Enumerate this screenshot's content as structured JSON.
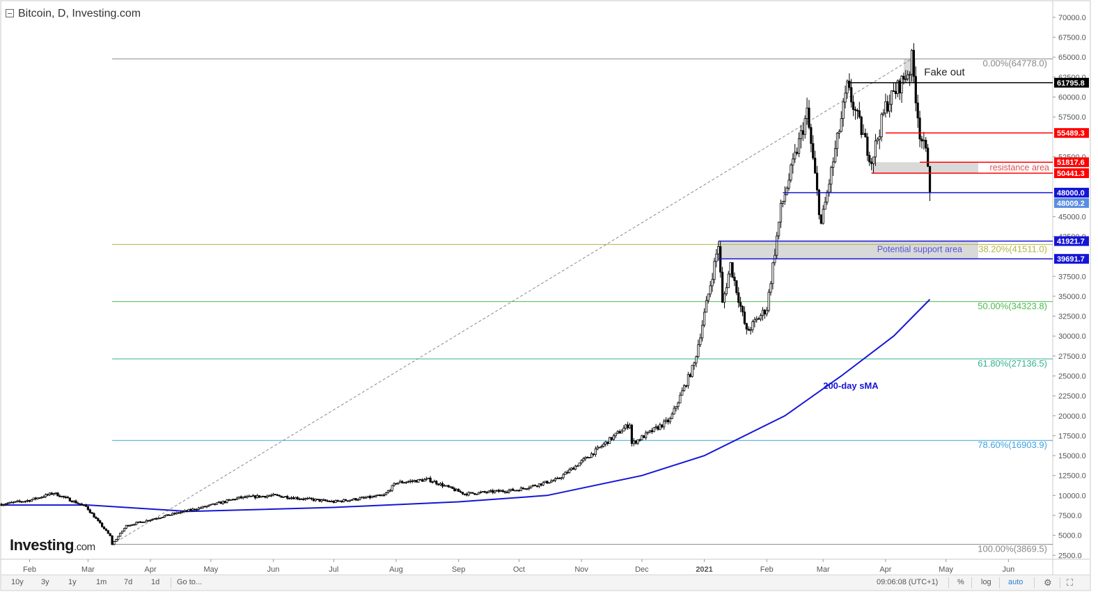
{
  "chart_title": "Bitcoin, D, Investing.com",
  "logo": {
    "brand": "Investing",
    "suffix": ".com"
  },
  "bottom_bar": {
    "periods": [
      "10y",
      "3y",
      "1y",
      "1m",
      "7d",
      "1d"
    ],
    "goto_label": "Go to...",
    "time": "09:06:08 (UTC+1)",
    "percent_label": "%",
    "log_label": "log",
    "auto_label": "auto"
  },
  "colors": {
    "candle": "#000000",
    "sma": "#1515d6",
    "price_tag_red": "#ff0000",
    "price_tag_blue": "#1515d6",
    "price_tag_black": "#000000",
    "current_price_tag": "#5b8de0",
    "fib_0": "#888888",
    "fib_382": "#b5b54a",
    "fib_50": "#4cbb4c",
    "fib_618": "#32b28e",
    "fib_786": "#3fa2dd",
    "fib_100": "#888888",
    "zone_fill": "#d9d9d9"
  },
  "chart_data": {
    "type": "candlestick",
    "title": "Bitcoin, D, Investing.com",
    "xlabel": "",
    "ylabel": "",
    "x_ticks": [
      "Feb",
      "Mar",
      "Apr",
      "May",
      "Jun",
      "Jul",
      "Aug",
      "Sep",
      "Oct",
      "Nov",
      "Dec",
      "2021",
      "Feb",
      "Mar",
      "Apr",
      "May",
      "Jun"
    ],
    "y_ticks": [
      2500,
      5000,
      7500,
      10000,
      12500,
      15000,
      17500,
      20000,
      22500,
      25000,
      27500,
      30000,
      32500,
      35000,
      37500,
      42500,
      45000,
      52500,
      57500,
      60000,
      62500,
      65000,
      67500,
      70000
    ],
    "y_tick_labels": [
      "2500.0",
      "5000.0",
      "7500.0",
      "10000.0",
      "12500.0",
      "15000.0",
      "17500.0",
      "20000.0",
      "22500.0",
      "25000.0",
      "27500.0",
      "30000.0",
      "32500.0",
      "35000.0",
      "37500.0",
      "42500.0",
      "45000.0",
      "52500.0",
      "57500.0",
      "60000.0",
      "62500.0",
      "65000.0",
      "67500.0",
      "70000.0"
    ],
    "ylim": [
      2000,
      72000
    ],
    "x_range": [
      "2020-01-18",
      "2021-06-23"
    ],
    "grid": false,
    "price_path": [
      [
        "2020-01-18",
        8900
      ],
      [
        "2020-02-01",
        9400
      ],
      [
        "2020-02-13",
        10300
      ],
      [
        "2020-02-29",
        8600
      ],
      [
        "2020-03-12",
        4900
      ],
      [
        "2020-03-13",
        3870
      ],
      [
        "2020-03-20",
        6200
      ],
      [
        "2020-04-06",
        7300
      ],
      [
        "2020-04-30",
        8700
      ],
      [
        "2020-05-15",
        9700
      ],
      [
        "2020-06-01",
        10000
      ],
      [
        "2020-07-01",
        9200
      ],
      [
        "2020-07-26",
        10000
      ],
      [
        "2020-08-01",
        11600
      ],
      [
        "2020-08-17",
        12000
      ],
      [
        "2020-09-04",
        10200
      ],
      [
        "2020-09-30",
        10700
      ],
      [
        "2020-10-20",
        12000
      ],
      [
        "2020-11-05",
        15000
      ],
      [
        "2020-11-25",
        19000
      ],
      [
        "2020-11-26",
        16500
      ],
      [
        "2020-12-15",
        19500
      ],
      [
        "2020-12-27",
        26500
      ],
      [
        "2021-01-08",
        41500
      ],
      [
        "2021-01-10",
        34000
      ],
      [
        "2021-01-14",
        39000
      ],
      [
        "2021-01-22",
        30500
      ],
      [
        "2021-02-01",
        33500
      ],
      [
        "2021-02-08",
        46000
      ],
      [
        "2021-02-21",
        58000
      ],
      [
        "2021-02-28",
        44000
      ],
      [
        "2021-03-13",
        61200
      ],
      [
        "2021-03-25",
        52000
      ],
      [
        "2021-04-01",
        58800
      ],
      [
        "2021-04-13",
        63500
      ],
      [
        "2021-04-14",
        64778
      ],
      [
        "2021-04-18",
        55500
      ],
      [
        "2021-04-22",
        52000
      ],
      [
        "2021-04-23",
        48009
      ]
    ],
    "sma": {
      "name": "200-day sMA",
      "path": [
        [
          "2020-01-18",
          8800
        ],
        [
          "2020-03-01",
          8800
        ],
        [
          "2020-04-20",
          8000
        ],
        [
          "2020-07-01",
          8500
        ],
        [
          "2020-09-01",
          9200
        ],
        [
          "2020-10-15",
          10000
        ],
        [
          "2020-12-01",
          12500
        ],
        [
          "2021-01-01",
          15000
        ],
        [
          "2021-02-10",
          20000
        ],
        [
          "2021-03-10",
          25000
        ],
        [
          "2021-04-05",
          30000
        ],
        [
          "2021-04-23",
          34600
        ]
      ]
    },
    "fibonacci": {
      "from": "2020-03-13",
      "levels": [
        {
          "ratio": "0.00%",
          "value": 64778.0,
          "label": "0.00%(64778.0)",
          "color_key": "fib_0"
        },
        {
          "ratio": "38.20%",
          "value": 41511.0,
          "label": "38.20%(41511.0)",
          "color_key": "fib_382"
        },
        {
          "ratio": "50.00%",
          "value": 34323.8,
          "label": "50.00%(34323.8)",
          "color_key": "fib_50"
        },
        {
          "ratio": "61.80%",
          "value": 27136.5,
          "label": "61.80%(27136.5)",
          "color_key": "fib_618"
        },
        {
          "ratio": "78.60%",
          "value": 16903.9,
          "label": "78.60%(16903.9)",
          "color_key": "fib_786"
        },
        {
          "ratio": "100.00%",
          "value": 3869.5,
          "label": "100.00%(3869.5)",
          "color_key": "fib_100"
        }
      ]
    },
    "levels": [
      {
        "value": 61795.8,
        "label": "61795.8",
        "color_key": "price_tag_black",
        "from": "2021-03-13"
      },
      {
        "value": 55489.3,
        "label": "55489.3",
        "color_key": "price_tag_red",
        "from": "2021-04-01"
      },
      {
        "value": 51817.6,
        "label": "51817.6",
        "color_key": "price_tag_red",
        "from": "2021-04-18"
      },
      {
        "value": 50441.3,
        "label": "50441.3",
        "color_key": "price_tag_red",
        "from": "2021-03-25"
      },
      {
        "value": 48000.0,
        "label": "48000.0",
        "color_key": "price_tag_blue",
        "from": "2021-02-09"
      },
      {
        "value": 41921.7,
        "label": "41921.7",
        "color_key": "price_tag_blue",
        "from": "2021-01-08"
      },
      {
        "value": 39691.7,
        "label": "39691.7",
        "color_key": "price_tag_blue",
        "from": "2021-01-08"
      }
    ],
    "current_price": {
      "value": 48009.2,
      "label": "48009.2"
    },
    "zones": [
      {
        "label": "Fake out",
        "from": "2021-04-10",
        "to": "2021-04-16",
        "low": 61795.8,
        "high": 64778.0
      },
      {
        "label": "resistance area",
        "from": "2021-03-25",
        "to": "2021-05-17",
        "low": 50441.3,
        "high": 51817.6
      },
      {
        "label": "Potential support area",
        "from": "2021-01-08",
        "to": "2021-05-17",
        "low": 39691.7,
        "high": 41921.7
      }
    ],
    "trendline": {
      "from": [
        "2020-03-13",
        3870
      ],
      "to": [
        "2021-04-14",
        64778
      ]
    },
    "annotations": [
      {
        "text": "200-day sMA",
        "at": [
          "2021-03-01",
          23400
        ],
        "color_key": "sma"
      }
    ]
  }
}
